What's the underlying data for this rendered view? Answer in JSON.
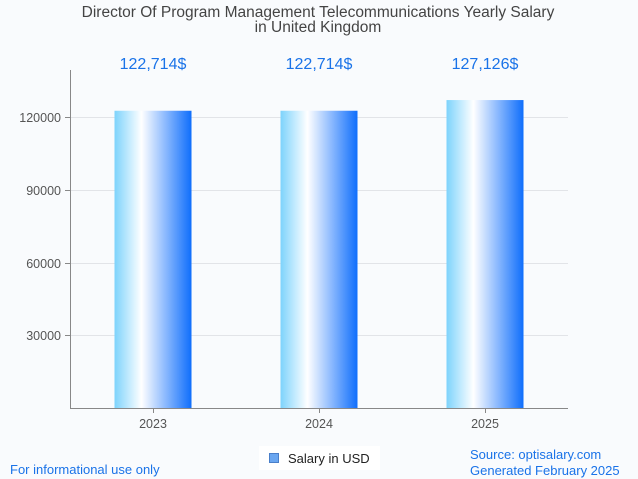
{
  "chart_data": {
    "type": "bar",
    "title": [
      "Director Of Program Management Telecommunications Yearly Salary",
      "in United Kingdom"
    ],
    "categories": [
      "2023",
      "2024",
      "2025"
    ],
    "series": [
      {
        "name": "Salary in USD",
        "values": [
          122714,
          122714,
          127126
        ]
      }
    ],
    "data_labels": [
      "122,714$",
      "122,714$",
      "127,126$"
    ],
    "xlabel": "",
    "ylabel": "",
    "ylim": [
      0,
      140000
    ],
    "yticks": [
      30000,
      60000,
      90000,
      120000
    ],
    "ytick_labels": [
      "30000",
      "60000",
      "90000",
      "120000"
    ],
    "grid": true,
    "legend": {
      "entries": [
        "Salary in USD"
      ],
      "position": "bottom-center"
    },
    "colors": {
      "gradient": [
        "#7dd3fc",
        "#ffffff",
        "#0f6efc"
      ],
      "data_label": "#1a73e8",
      "legend_swatch": "#6aa6f0"
    }
  },
  "footer": {
    "left": "For informational use only",
    "source": "Source: optisalary.com",
    "generated": "Generated February 2025"
  }
}
